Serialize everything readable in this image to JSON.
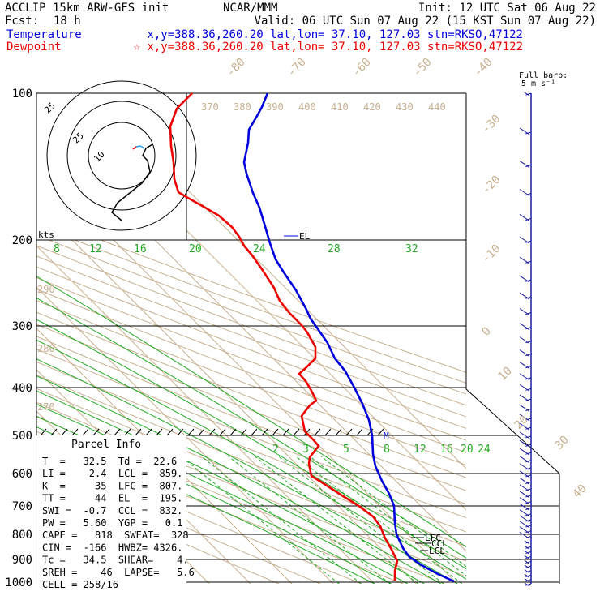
{
  "header": {
    "model": "ACCLIP 15km ARW-GFS init",
    "fcst_label": "Fcst:",
    "fcst_value": "18 h",
    "center": "NCAR/MMM",
    "init": "Init: 12 UTC Sat 06 Aug 22",
    "valid": "Valid: 06 UTC Sun 07 Aug 22 (15 KST Sun 07 Aug 22)",
    "temperature_label": "Temperature",
    "temperature_info": "x,y=388.36,260.20   lat,lon= 37.10, 127.03  stn=RKSO,47122",
    "dewpoint_label": "Dewpoint",
    "dewpoint_info": "☆ x,y=388.36,260.20   lat,lon= 37.10, 127.03  stn=RKSO,47122"
  },
  "barb_legend": {
    "line1": "Full barb:",
    "line2": "5 m s⁻¹"
  },
  "hodograph": {
    "unit": "kts",
    "ring_labels": [
      "25",
      "10"
    ],
    "corner_label": "25"
  },
  "parcel_info": {
    "title": "Parcel Info",
    "rows": [
      "T  =   32.5  Td =  22.6",
      "LI =   -2.4  LCL =  859.",
      "K  =     35  LFC =  807.",
      "TT =     44  EL  =  195.",
      "SWI =  -0.7  CCL =  832.",
      "PW =   5.60  YGP =   0.1",
      "CAPE =   818  SWEAT=  328",
      "CIN =  -166  HWBZ= 4326.",
      "Tc =   34.5  SHEAR=    4.",
      "SREH =    46  LAPSE=   5.6",
      "CELL = 258/16"
    ]
  },
  "level_labels": {
    "el": "EL",
    "lfc": "LFC",
    "ccl": "CCL",
    "lcl": "LCL",
    "m": "M"
  },
  "colors": {
    "temperature": "#0000dd",
    "dewpoint": "#ee0000",
    "isotherm": "#c8b090",
    "dry_adiabat": "#c8b090",
    "moist_adiabat": "#22aa22",
    "mixing_ratio": "#22aa22",
    "isobar": "#000000",
    "wind_barb": "#1a1aa0"
  },
  "chart_data": {
    "type": "skew-t",
    "pressure_axis": {
      "label_ticks": [
        100,
        200,
        300,
        400,
        500,
        600,
        700,
        800,
        900,
        1000
      ],
      "range": [
        1000,
        100
      ],
      "scale": "log"
    },
    "isotherm_labels": [
      "-80",
      "-70",
      "-60",
      "-50",
      "-40",
      "-30",
      "-20",
      "-10",
      "0",
      "10",
      "20",
      "30",
      "40"
    ],
    "theta_labels_top": [
      "370",
      "380",
      "390",
      "400",
      "410",
      "420",
      "430",
      "440"
    ],
    "theta_labels_left": [
      "290",
      "280",
      "270"
    ],
    "moist_adiabat_labels": [
      "8",
      "12",
      "16",
      "20",
      "24",
      "28",
      "32"
    ],
    "mixing_ratio_labels": [
      "2",
      "3",
      "5",
      "8",
      "12",
      "16",
      "20",
      "24"
    ],
    "series": [
      {
        "name": "Temperature",
        "points": [
          [
            1000,
            32.5
          ],
          [
            950,
            27.3
          ],
          [
            900,
            23.0
          ],
          [
            850,
            19.1
          ],
          [
            800,
            16.6
          ],
          [
            750,
            14.1
          ],
          [
            700,
            11.0
          ],
          [
            650,
            7.6
          ],
          [
            600,
            4.1
          ],
          [
            550,
            0.5
          ],
          [
            500,
            -3.3
          ],
          [
            450,
            -8.5
          ],
          [
            400,
            -13.5
          ],
          [
            350,
            -20.0
          ],
          [
            300,
            -28.0
          ],
          [
            250,
            -37.0
          ],
          [
            200,
            -48.0
          ],
          [
            180,
            -53.0
          ],
          [
            160,
            -57.5
          ],
          [
            140,
            -62.0
          ],
          [
            125,
            -63.5
          ],
          [
            110,
            -62.0
          ],
          [
            100,
            -60.0
          ]
        ]
      },
      {
        "name": "Dewpoint",
        "points": [
          [
            1000,
            22.6
          ],
          [
            950,
            22.0
          ],
          [
            900,
            21.0
          ],
          [
            850,
            16.5
          ],
          [
            800,
            11.0
          ],
          [
            750,
            6.0
          ],
          [
            700,
            -2.0
          ],
          [
            650,
            -11.0
          ],
          [
            600,
            -20.0
          ],
          [
            550,
            -16.5
          ],
          [
            500,
            -18.5
          ],
          [
            450,
            -21.0
          ],
          [
            400,
            -26.0
          ],
          [
            375,
            -29.0
          ],
          [
            350,
            -22.0
          ],
          [
            300,
            -31.5
          ],
          [
            250,
            -45.0
          ],
          [
            200,
            -58.0
          ],
          [
            180,
            -68.0
          ],
          [
            160,
            -78.0
          ],
          [
            140,
            -82.0
          ],
          [
            125,
            -85.0
          ],
          [
            110,
            -85.0
          ],
          [
            100,
            -80.0
          ]
        ]
      }
    ],
    "winds": [
      [
        1000,
        4
      ],
      [
        980,
        4
      ],
      [
        960,
        5
      ],
      [
        940,
        5
      ],
      [
        920,
        6
      ],
      [
        900,
        6
      ],
      [
        880,
        6
      ],
      [
        860,
        7
      ],
      [
        840,
        7
      ],
      [
        820,
        7
      ],
      [
        800,
        8
      ],
      [
        780,
        8
      ],
      [
        760,
        8
      ],
      [
        740,
        9
      ],
      [
        720,
        9
      ],
      [
        700,
        9
      ],
      [
        680,
        10
      ],
      [
        660,
        10
      ],
      [
        640,
        10
      ],
      [
        620,
        10
      ],
      [
        600,
        10
      ],
      [
        580,
        10
      ],
      [
        560,
        10
      ],
      [
        540,
        10
      ],
      [
        520,
        10
      ],
      [
        500,
        10
      ],
      [
        480,
        12
      ],
      [
        460,
        12
      ],
      [
        440,
        12
      ],
      [
        420,
        12
      ],
      [
        400,
        12
      ],
      [
        380,
        12
      ],
      [
        360,
        12
      ],
      [
        340,
        12
      ],
      [
        320,
        12
      ],
      [
        300,
        12
      ],
      [
        280,
        10
      ],
      [
        260,
        10
      ],
      [
        240,
        10
      ],
      [
        220,
        10
      ],
      [
        200,
        8
      ],
      [
        180,
        8
      ],
      [
        160,
        8
      ],
      [
        140,
        8
      ],
      [
        120,
        8
      ],
      [
        100,
        6
      ]
    ]
  }
}
